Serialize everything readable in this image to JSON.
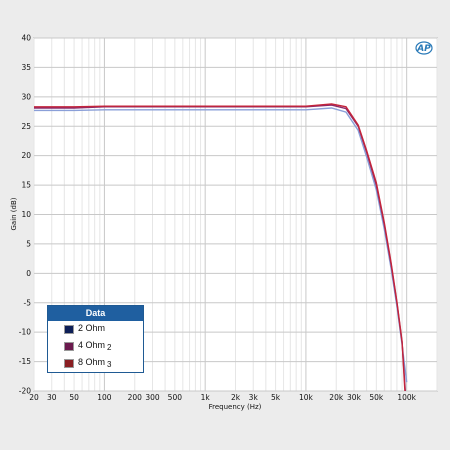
{
  "chart_data": {
    "type": "line",
    "xlabel": "Frequency (Hz)",
    "ylabel": "Gain (dB)",
    "xscale": "log",
    "xlim": [
      20,
      200000
    ],
    "ylim": [
      -20,
      40
    ],
    "yticks": [
      40,
      35,
      30,
      25,
      20,
      15,
      10,
      5,
      0,
      -5,
      -10,
      -15,
      -20
    ],
    "xticks": [
      {
        "v": 20,
        "label": "20"
      },
      {
        "v": 30,
        "label": "30"
      },
      {
        "v": 50,
        "label": "50"
      },
      {
        "v": 100,
        "label": "100"
      },
      {
        "v": 200,
        "label": "200"
      },
      {
        "v": 300,
        "label": "300"
      },
      {
        "v": 500,
        "label": "500"
      },
      {
        "v": 1000,
        "label": "1k"
      },
      {
        "v": 2000,
        "label": "2k"
      },
      {
        "v": 3000,
        "label": "3k"
      },
      {
        "v": 5000,
        "label": "5k"
      },
      {
        "v": 10000,
        "label": "10k"
      },
      {
        "v": 20000,
        "label": "20k"
      },
      {
        "v": 30000,
        "label": "30k"
      },
      {
        "v": 50000,
        "label": "50k"
      },
      {
        "v": 100000,
        "label": "100k"
      }
    ],
    "grid": true,
    "legend_title": "Data",
    "legend_position": "bottom-left",
    "series": [
      {
        "name": "2 Ohm",
        "color": "#8a9fd8",
        "legend_color": "#0d1f57",
        "sub": "",
        "x": [
          20,
          50,
          100,
          1000,
          10000,
          18000,
          25000,
          33000,
          40000,
          50000,
          60000,
          70000,
          80000,
          90000,
          100000
        ],
        "y": [
          27.7,
          27.7,
          27.8,
          27.8,
          27.8,
          28.1,
          27.4,
          24.3,
          19.8,
          14.2,
          7.5,
          0.8,
          -5.6,
          -12.2,
          -18.5
        ]
      },
      {
        "name": "4 Ohm",
        "color": "#8a2a6a",
        "legend_color": "#6b1a4e",
        "sub": "2",
        "x": [
          20,
          50,
          100,
          1000,
          10000,
          18000,
          25000,
          33000,
          40000,
          50000,
          60000,
          70000,
          80000,
          90000,
          97000
        ],
        "y": [
          28.1,
          28.1,
          28.3,
          28.3,
          28.3,
          28.6,
          28.0,
          25.0,
          20.6,
          15.0,
          8.3,
          1.5,
          -5.0,
          -11.8,
          -20.0
        ]
      },
      {
        "name": "8 Ohm",
        "color": "#c4243a",
        "legend_color": "#8a1e22",
        "sub": "3",
        "x": [
          20,
          50,
          100,
          1000,
          10000,
          18000,
          25000,
          33000,
          40000,
          50000,
          60000,
          70000,
          80000,
          90000,
          96000
        ],
        "y": [
          28.3,
          28.3,
          28.4,
          28.4,
          28.4,
          28.8,
          28.3,
          25.2,
          20.9,
          15.4,
          8.6,
          1.8,
          -4.8,
          -11.6,
          -20.0
        ]
      }
    ]
  },
  "logo_text": "AP"
}
